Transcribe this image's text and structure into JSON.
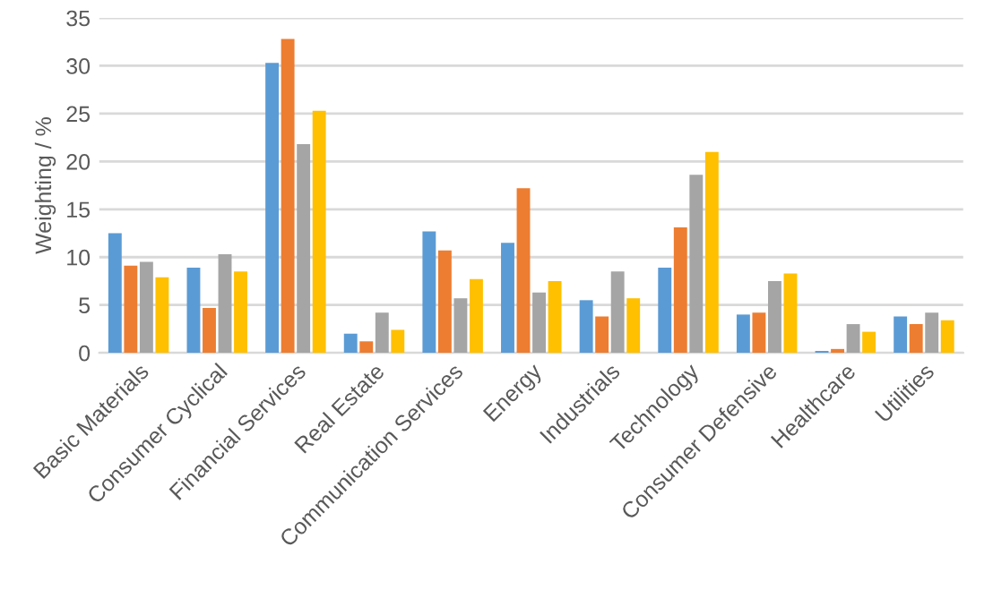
{
  "chart_data": {
    "type": "bar",
    "ylabel": "Weighting / %",
    "categories": [
      "Basic Materials",
      "Consumer Cyclical",
      "Financial Services",
      "Real Estate",
      "Communication Services",
      "Energy",
      "Industrials",
      "Technology",
      "Consumer Defensive",
      "Healthcare",
      "Utilities"
    ],
    "series": [
      {
        "color": "#5b9bd5",
        "values": [
          12.5,
          8.9,
          30.3,
          2.0,
          12.7,
          11.5,
          5.5,
          8.9,
          4.0,
          0.2,
          3.8
        ]
      },
      {
        "color": "#ed7d31",
        "values": [
          9.1,
          4.7,
          32.8,
          1.2,
          10.7,
          17.2,
          3.8,
          13.1,
          4.2,
          0.4,
          3.0
        ]
      },
      {
        "color": "#a5a5a5",
        "values": [
          9.5,
          10.3,
          21.8,
          4.2,
          5.7,
          6.3,
          8.5,
          18.6,
          7.5,
          3.0,
          4.2
        ]
      },
      {
        "color": "#ffc000",
        "values": [
          7.9,
          8.5,
          25.3,
          2.4,
          7.7,
          7.5,
          5.7,
          21.0,
          8.3,
          2.2,
          3.4
        ]
      }
    ],
    "ylim": [
      0,
      35
    ],
    "yticks": [
      0,
      5,
      10,
      15,
      20,
      25,
      30,
      35
    ],
    "grid": "y"
  }
}
